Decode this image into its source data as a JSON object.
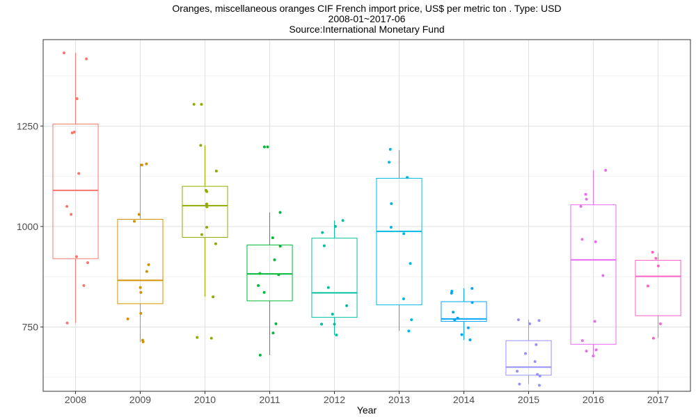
{
  "chart_data": {
    "type": "box",
    "title": "Oranges, miscellaneous oranges CIF French import price, US$ per metric ton . Type: USD",
    "subtitle": "2008-01~2017-06",
    "source": "Source:International Monetary Fund",
    "xlabel": "Year",
    "ylabel": "",
    "ylim": [
      590,
      1465
    ],
    "yticks": [
      750,
      1000,
      1250
    ],
    "grid": true,
    "legend": "none",
    "categories": [
      "2008",
      "2009",
      "2010",
      "2011",
      "2012",
      "2013",
      "2014",
      "2015",
      "2016",
      "2017"
    ],
    "colors": [
      "#F8766D",
      "#D39200",
      "#93AA00",
      "#00BA38",
      "#00C19F",
      "#00B9E3",
      "#00A5FF",
      "#9590FF",
      "#E76BF3",
      "#FF61C3"
    ],
    "boxes": [
      {
        "q1": 920,
        "median": 1090,
        "q3": 1255,
        "whisker_low": 760,
        "whisker_high": 1432
      },
      {
        "q1": 808,
        "median": 866,
        "q3": 1018,
        "whisker_low": 713,
        "whisker_high": 1156
      },
      {
        "q1": 973,
        "median": 1052,
        "q3": 1100,
        "whisker_low": 825,
        "whisker_high": 1202
      },
      {
        "q1": 815,
        "median": 882,
        "q3": 954,
        "whisker_low": 680,
        "whisker_high": 1035
      },
      {
        "q1": 774,
        "median": 835,
        "q3": 971,
        "whisker_low": 730,
        "whisker_high": 1015
      },
      {
        "q1": 805,
        "median": 988,
        "q3": 1120,
        "whisker_low": 740,
        "whisker_high": 1190
      },
      {
        "q1": 764,
        "median": 770,
        "q3": 813,
        "whisker_low": 718,
        "whisker_high": 846
      },
      {
        "q1": 630,
        "median": 650,
        "q3": 716,
        "whisker_low": 608,
        "whisker_high": 768
      },
      {
        "q1": 707,
        "median": 917,
        "q3": 1054,
        "whisker_low": 678,
        "whisker_high": 1140
      },
      {
        "q1": 778,
        "median": 876,
        "q3": 916,
        "whisker_low": 722,
        "whisker_high": 934
      }
    ],
    "points": [
      {
        "year": "2008",
        "values": [
          1417,
          1432,
          1318,
          1233,
          1235,
          1132,
          1050,
          1030,
          925,
          910,
          853,
          760
        ]
      },
      {
        "year": "2009",
        "values": [
          1156,
          1153,
          1030,
          1013,
          905,
          888,
          848,
          836,
          784,
          770,
          717,
          713
        ]
      },
      {
        "year": "2010",
        "values": [
          1304,
          1304,
          1202,
          1138,
          1090,
          1087,
          1056,
          1049,
          998,
          980,
          957,
          825,
          724,
          722
        ]
      },
      {
        "year": "2011",
        "values": [
          1198,
          1198,
          1035,
          972,
          951,
          917,
          883,
          880,
          853,
          836,
          758,
          735,
          680
        ]
      },
      {
        "year": "2012",
        "values": [
          1015,
          1000,
          985,
          952,
          848,
          803,
          782,
          757,
          757,
          730
        ]
      },
      {
        "year": "2013",
        "values": [
          1192,
          1160,
          1122,
          1057,
          998,
          982,
          908,
          820,
          768,
          740
        ]
      },
      {
        "year": "2014",
        "values": [
          846,
          839,
          834,
          811,
          787,
          772,
          768,
          748,
          731,
          718
        ]
      },
      {
        "year": "2015",
        "values": [
          768,
          766,
          758,
          706,
          684,
          664,
          640,
          632,
          628,
          608,
          605
        ]
      },
      {
        "year": "2016",
        "values": [
          1140,
          1080,
          1068,
          1050,
          968,
          962,
          878,
          764,
          716,
          693,
          690,
          678
        ]
      },
      {
        "year": "2017",
        "values": [
          936,
          921,
          902,
          852,
          758,
          722
        ]
      }
    ]
  }
}
